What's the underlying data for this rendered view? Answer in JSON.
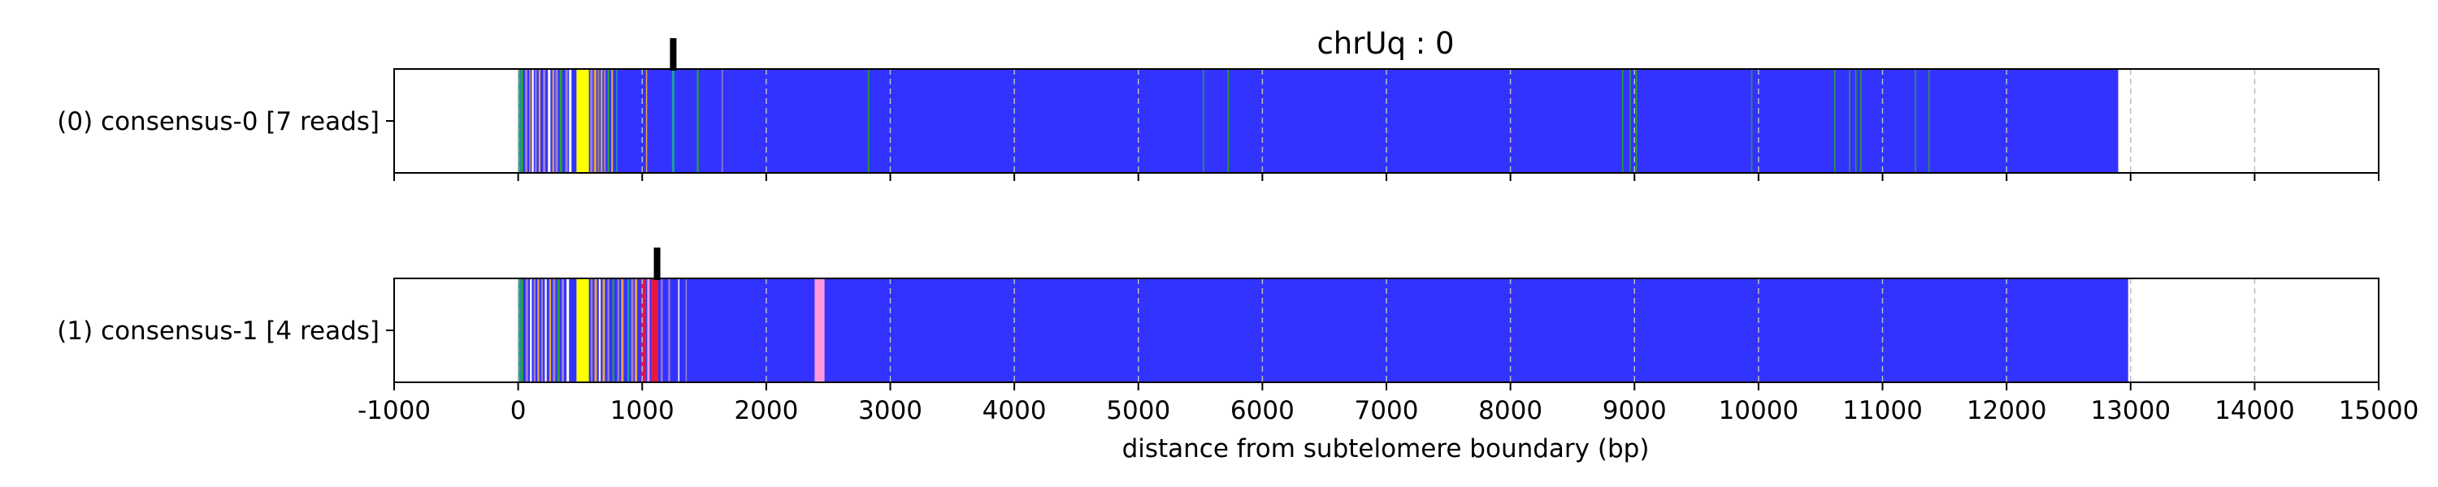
{
  "chart_data": {
    "type": "heatmap",
    "title": "chrUq : 0",
    "xlabel": "distance from subtelomere boundary (bp)",
    "xlim": [
      -1000,
      15000
    ],
    "xticks": [
      -1000,
      0,
      1000,
      2000,
      3000,
      4000,
      5000,
      6000,
      7000,
      8000,
      9000,
      10000,
      11000,
      12000,
      13000,
      14000,
      15000
    ],
    "xtick_labels": [
      "-1000",
      "0",
      "1000",
      "2000",
      "3000",
      "4000",
      "5000",
      "6000",
      "7000",
      "8000",
      "9000",
      "10000",
      "11000",
      "12000",
      "13000",
      "14000",
      "15000"
    ],
    "grid": "vertical dashed",
    "colors": {
      "background_fill": "#3333ff",
      "orange": "#e8a33a",
      "yellow": "#ffff00",
      "green": "#2ca02c",
      "teal": "#1f9e9e",
      "purple": "#9a7fd1",
      "pink": "#ff99dd",
      "red": "#e8173c",
      "white": "#ffffff",
      "grey": "#888888",
      "marker": "#000000",
      "grid": "#bbbbbb"
    },
    "series": [
      {
        "name": "(0) consensus-0 [7 reads]",
        "start": 0,
        "end": 12900,
        "marker": 1250,
        "segments": [
          {
            "start": 0,
            "end": 20,
            "color": "teal"
          },
          {
            "start": 20,
            "end": 40,
            "color": "green"
          },
          {
            "start": 55,
            "end": 75,
            "color": "purple"
          },
          {
            "start": 90,
            "end": 100,
            "color": "orange"
          },
          {
            "start": 110,
            "end": 125,
            "color": "white"
          },
          {
            "start": 135,
            "end": 150,
            "color": "purple"
          },
          {
            "start": 165,
            "end": 180,
            "color": "orange"
          },
          {
            "start": 200,
            "end": 220,
            "color": "purple"
          },
          {
            "start": 240,
            "end": 260,
            "color": "white"
          },
          {
            "start": 275,
            "end": 290,
            "color": "orange"
          },
          {
            "start": 300,
            "end": 320,
            "color": "purple"
          },
          {
            "start": 335,
            "end": 355,
            "color": "green"
          },
          {
            "start": 380,
            "end": 400,
            "color": "purple"
          },
          {
            "start": 410,
            "end": 430,
            "color": "white"
          },
          {
            "start": 470,
            "end": 570,
            "color": "yellow"
          },
          {
            "start": 580,
            "end": 600,
            "color": "purple"
          },
          {
            "start": 610,
            "end": 630,
            "color": "orange"
          },
          {
            "start": 640,
            "end": 655,
            "color": "grey"
          },
          {
            "start": 665,
            "end": 680,
            "color": "orange"
          },
          {
            "start": 690,
            "end": 705,
            "color": "purple"
          },
          {
            "start": 720,
            "end": 735,
            "color": "green"
          },
          {
            "start": 750,
            "end": 765,
            "color": "orange"
          },
          {
            "start": 790,
            "end": 800,
            "color": "teal"
          },
          {
            "start": 1030,
            "end": 1040,
            "color": "orange"
          },
          {
            "start": 1240,
            "end": 1260,
            "color": "teal"
          },
          {
            "start": 1440,
            "end": 1455,
            "color": "green"
          },
          {
            "start": 1640,
            "end": 1650,
            "color": "purple"
          },
          {
            "start": 2820,
            "end": 2830,
            "color": "green"
          },
          {
            "start": 5520,
            "end": 5530,
            "color": "green"
          },
          {
            "start": 5720,
            "end": 5730,
            "color": "green"
          },
          {
            "start": 8900,
            "end": 8910,
            "color": "green"
          },
          {
            "start": 8960,
            "end": 8970,
            "color": "green"
          },
          {
            "start": 9010,
            "end": 9020,
            "color": "green"
          },
          {
            "start": 9940,
            "end": 9950,
            "color": "green"
          },
          {
            "start": 10610,
            "end": 10620,
            "color": "green"
          },
          {
            "start": 10730,
            "end": 10740,
            "color": "green"
          },
          {
            "start": 10780,
            "end": 10790,
            "color": "green"
          },
          {
            "start": 10820,
            "end": 10830,
            "color": "green"
          },
          {
            "start": 11260,
            "end": 11270,
            "color": "green"
          },
          {
            "start": 11370,
            "end": 11380,
            "color": "green"
          }
        ]
      },
      {
        "name": "(1) consensus-1 [4 reads]",
        "start": 0,
        "end": 12980,
        "marker": 1120,
        "segments": [
          {
            "start": 0,
            "end": 20,
            "color": "teal"
          },
          {
            "start": 20,
            "end": 40,
            "color": "green"
          },
          {
            "start": 60,
            "end": 80,
            "color": "purple"
          },
          {
            "start": 95,
            "end": 110,
            "color": "white"
          },
          {
            "start": 125,
            "end": 140,
            "color": "purple"
          },
          {
            "start": 155,
            "end": 170,
            "color": "orange"
          },
          {
            "start": 185,
            "end": 200,
            "color": "purple"
          },
          {
            "start": 215,
            "end": 230,
            "color": "white"
          },
          {
            "start": 250,
            "end": 265,
            "color": "orange"
          },
          {
            "start": 280,
            "end": 300,
            "color": "purple"
          },
          {
            "start": 315,
            "end": 335,
            "color": "green"
          },
          {
            "start": 350,
            "end": 370,
            "color": "purple"
          },
          {
            "start": 390,
            "end": 410,
            "color": "white"
          },
          {
            "start": 470,
            "end": 570,
            "color": "yellow"
          },
          {
            "start": 585,
            "end": 600,
            "color": "purple"
          },
          {
            "start": 615,
            "end": 635,
            "color": "orange"
          },
          {
            "start": 650,
            "end": 665,
            "color": "white"
          },
          {
            "start": 680,
            "end": 700,
            "color": "orange"
          },
          {
            "start": 720,
            "end": 735,
            "color": "purple"
          },
          {
            "start": 760,
            "end": 775,
            "color": "green"
          },
          {
            "start": 800,
            "end": 815,
            "color": "purple"
          },
          {
            "start": 830,
            "end": 850,
            "color": "orange"
          },
          {
            "start": 880,
            "end": 895,
            "color": "teal"
          },
          {
            "start": 910,
            "end": 930,
            "color": "purple"
          },
          {
            "start": 940,
            "end": 960,
            "color": "orange"
          },
          {
            "start": 990,
            "end": 1030,
            "color": "red"
          },
          {
            "start": 1040,
            "end": 1060,
            "color": "pink"
          },
          {
            "start": 1070,
            "end": 1130,
            "color": "red"
          },
          {
            "start": 1150,
            "end": 1165,
            "color": "purple"
          },
          {
            "start": 1210,
            "end": 1225,
            "color": "purple"
          },
          {
            "start": 1290,
            "end": 1300,
            "color": "white"
          },
          {
            "start": 1350,
            "end": 1360,
            "color": "purple"
          },
          {
            "start": 2390,
            "end": 2470,
            "color": "pink"
          }
        ]
      }
    ]
  }
}
